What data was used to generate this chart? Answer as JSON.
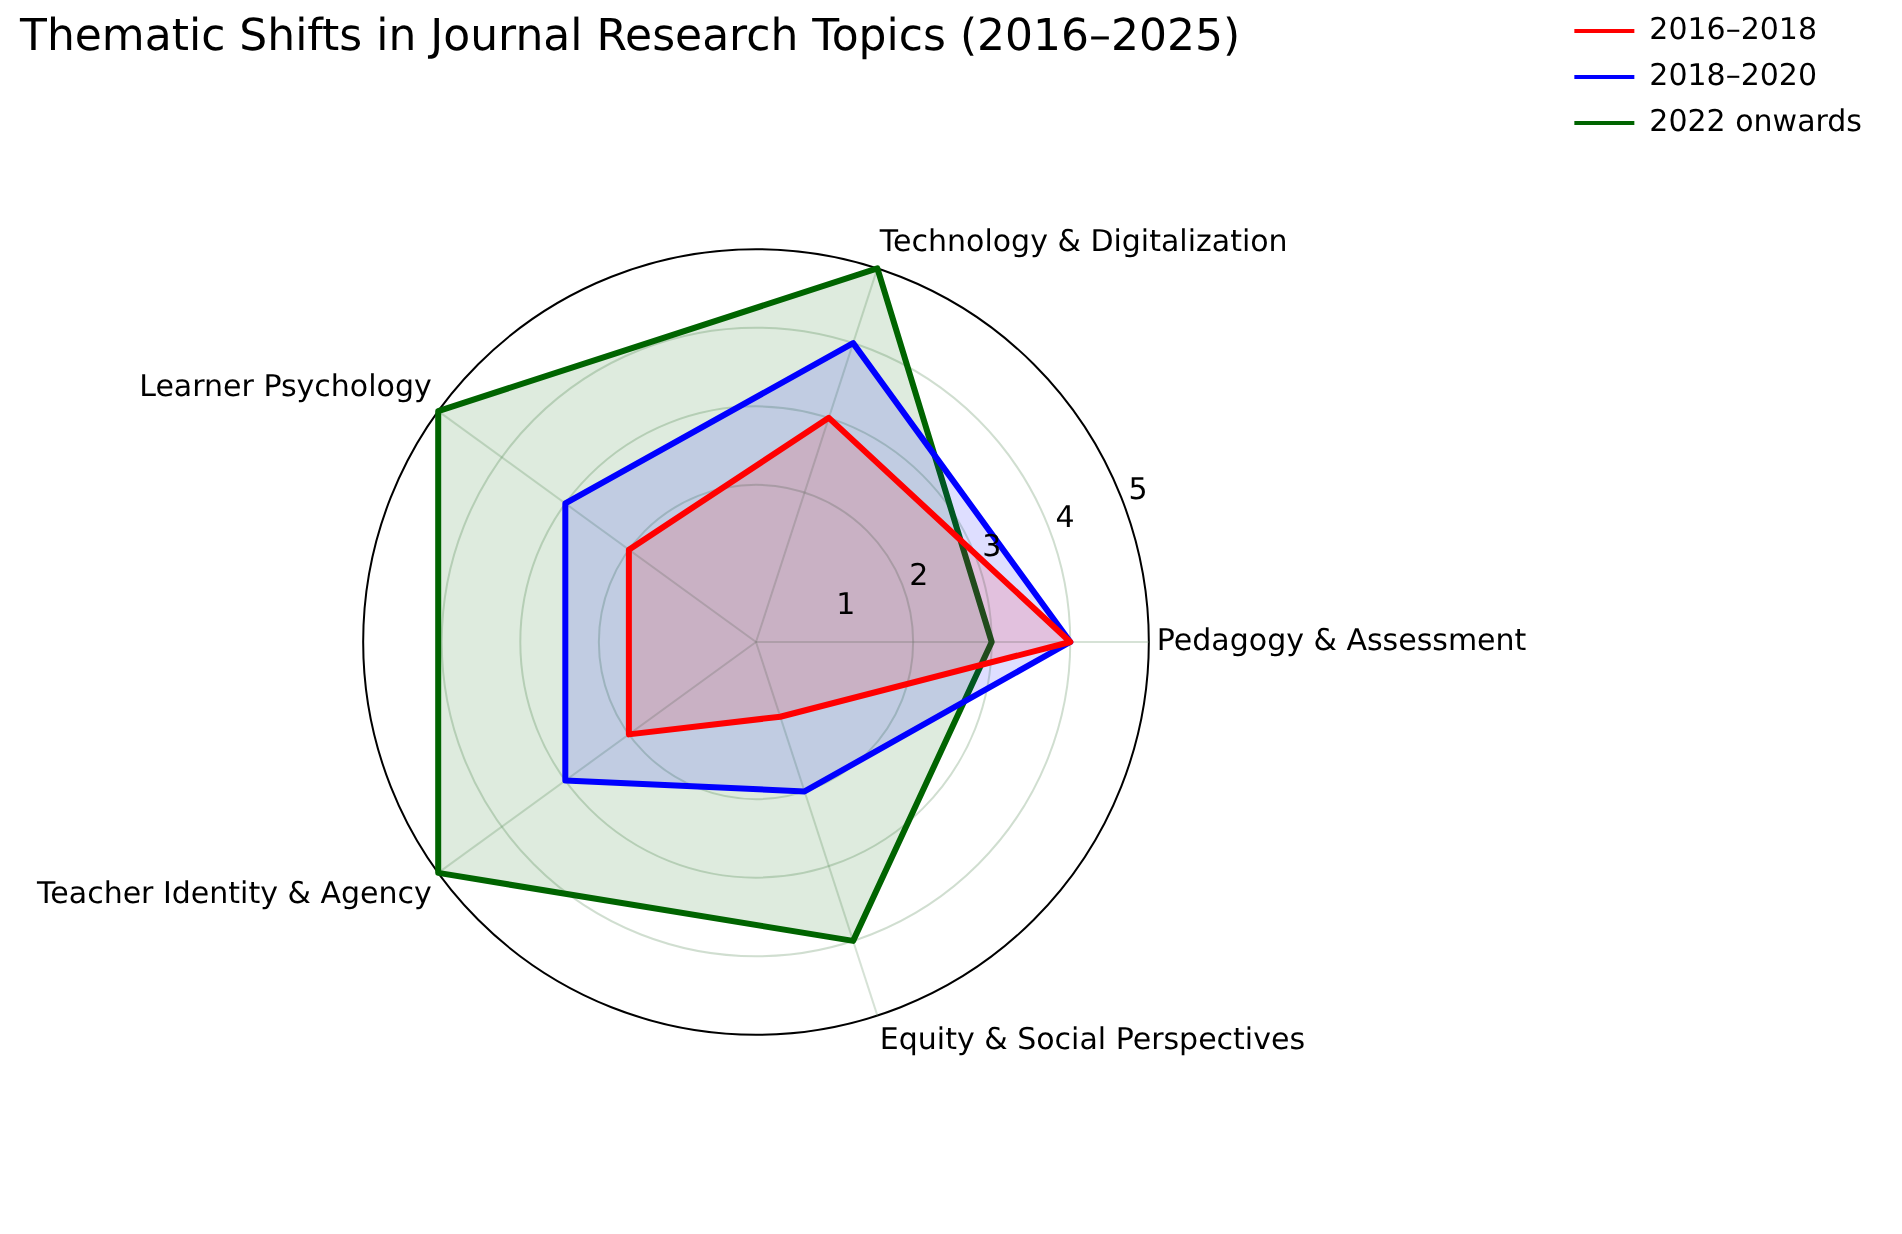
{
  "chart_data": {
    "type": "radar",
    "title": "Thematic Shifts in Journal Research Topics (2016–2025)",
    "categories": [
      "Technology & Digitalization",
      "Pedagogy & Assessment",
      "Equity & Social Perspectives",
      "Teacher Identity & Agency",
      "Learner Psychology"
    ],
    "series": [
      {
        "name": "2016–2018",
        "color": "#ff0000",
        "values": [
          3,
          4,
          1,
          2,
          2
        ]
      },
      {
        "name": "2018–2020",
        "color": "#0000ff",
        "values": [
          4,
          4,
          2,
          3,
          3
        ]
      },
      {
        "name": "2022 onwards",
        "color": "#006400",
        "values": [
          5,
          3,
          4,
          5,
          5
        ]
      }
    ],
    "ylim": [
      0,
      5
    ],
    "yticks": [
      1,
      2,
      3,
      4,
      5
    ],
    "grid": true,
    "legend": "top right",
    "marker": "none",
    "line_style": "solid"
  }
}
